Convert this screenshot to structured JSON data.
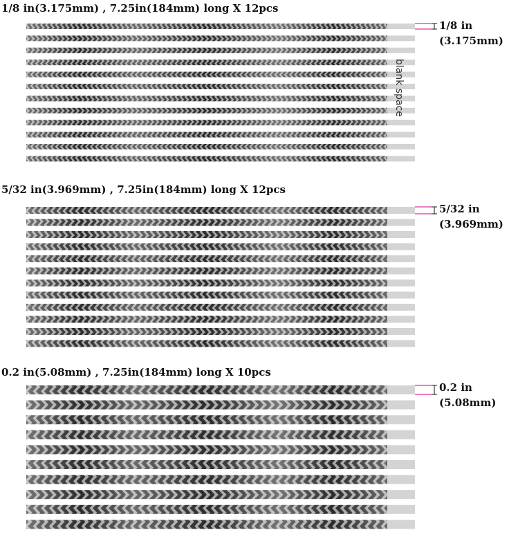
{
  "sections": [
    {
      "title": "1/8 in(3.175mm) , 7.25in(184mm) long X 12pcs",
      "size_label": [
        "1/8 in",
        "(3.175mm)"
      ]
    },
    {
      "title": "5/32 in(3.969mm) , 7.25in(184mm) long X 12pcs",
      "size_label": [
        "5/32 in",
        "(3.969mm)"
      ]
    },
    {
      "title": "0.2 in(5.08mm) , 7.25in(184mm) long X 10pcs",
      "size_label": [
        "0.2 in",
        "(5.08mm)"
      ]
    }
  ],
  "blank_space_label": "blank space"
}
